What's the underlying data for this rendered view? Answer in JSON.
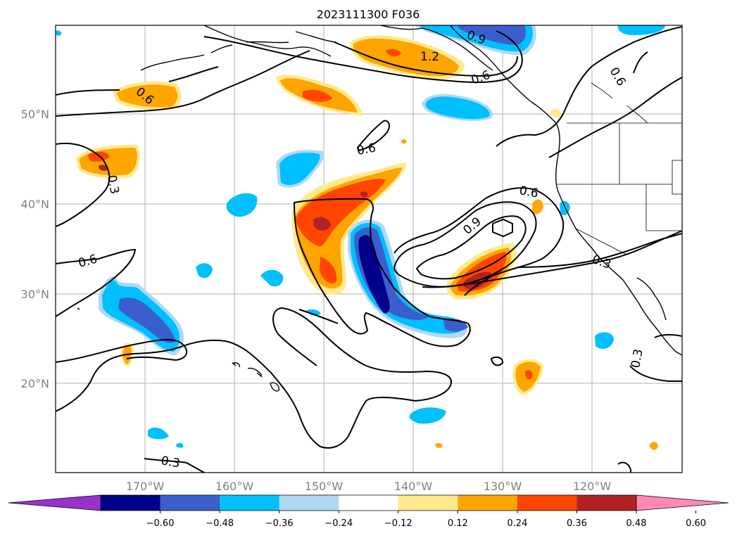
{
  "title": "2023111300 F036",
  "lon_labels": [
    "170°W",
    "160°W",
    "150°W",
    "140°W",
    "130°W",
    "120°W"
  ],
  "lat_labels": [
    "50°N",
    "40°N",
    "30°N",
    "20°N"
  ],
  "colorbar": {
    "ticks": [
      "−0.60",
      "−0.48",
      "−0.36",
      "−0.24",
      "−0.12",
      "0.12",
      "0.24",
      "0.36",
      "0.48",
      "0.60"
    ],
    "colors": [
      "#9932cc",
      "#00008b",
      "#3a5fcd",
      "#00bfff",
      "#add8f6",
      "#ffffff",
      "#ffe98c",
      "#ffa500",
      "#ff4500",
      "#b22222",
      "#ff8ab0"
    ]
  },
  "contour_labels": [
    "0.9",
    "1.2",
    "0.6",
    "0.6",
    "0.6",
    "0.3",
    "0.6",
    "0.6",
    "0.9",
    "0.6",
    "0.3",
    "0.3",
    "0.3"
  ]
}
